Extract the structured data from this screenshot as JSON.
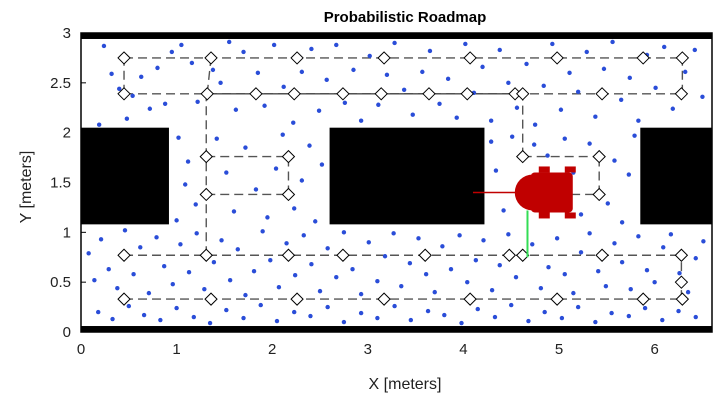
{
  "chart_data": {
    "type": "scatter",
    "title": "Probabilistic Roadmap",
    "xlabel": "X [meters]",
    "ylabel": "Y [meters]",
    "xlim": [
      0,
      6.6
    ],
    "ylim": [
      0,
      3
    ],
    "xticks": [
      "0",
      "1",
      "2",
      "3",
      "4",
      "5",
      "6"
    ],
    "yticks": [
      "0",
      "0.5",
      "1",
      "1.5",
      "2",
      "2.5",
      "3"
    ],
    "colors": {
      "obstacle": "#000000",
      "sample": "#2a4dd8",
      "edge": "#555555",
      "path": "#4a4a4a",
      "node": "#000000",
      "robot": "#c00000",
      "heading": "#c00000",
      "sensor": "#33dd55"
    },
    "obstacles": [
      {
        "x": [
          0,
          0.92
        ],
        "y": [
          1.08,
          2.05
        ]
      },
      {
        "x": [
          2.6,
          4.22
        ],
        "y": [
          1.08,
          2.05
        ]
      },
      {
        "x": [
          5.85,
          6.6
        ],
        "y": [
          1.08,
          2.05
        ]
      }
    ],
    "border": {
      "x": [
        0,
        6.6
      ],
      "y": [
        0.06,
        2.94
      ]
    },
    "nodes": [
      [
        0.45,
        2.75
      ],
      [
        1.36,
        2.75
      ],
      [
        2.26,
        2.75
      ],
      [
        3.17,
        2.75
      ],
      [
        4.07,
        2.75
      ],
      [
        4.98,
        2.75
      ],
      [
        5.88,
        2.75
      ],
      [
        6.29,
        2.75
      ],
      [
        0.45,
        2.39
      ],
      [
        1.32,
        2.39
      ],
      [
        1.83,
        2.39
      ],
      [
        2.23,
        2.39
      ],
      [
        2.74,
        2.39
      ],
      [
        3.14,
        2.39
      ],
      [
        3.64,
        2.39
      ],
      [
        4.04,
        2.39
      ],
      [
        4.54,
        2.39
      ],
      [
        4.62,
        2.39
      ],
      [
        5.45,
        2.39
      ],
      [
        6.28,
        2.39
      ],
      [
        1.31,
        1.76
      ],
      [
        2.17,
        1.76
      ],
      [
        4.62,
        1.76
      ],
      [
        5.42,
        1.76
      ],
      [
        1.31,
        1.38
      ],
      [
        2.17,
        1.38
      ],
      [
        5.42,
        1.38
      ],
      [
        0.45,
        0.77
      ],
      [
        1.31,
        0.77
      ],
      [
        2.17,
        0.77
      ],
      [
        2.74,
        0.77
      ],
      [
        3.6,
        0.77
      ],
      [
        4.48,
        0.77
      ],
      [
        4.62,
        0.77
      ],
      [
        5.45,
        0.77
      ],
      [
        6.28,
        0.77
      ],
      [
        0.45,
        0.33
      ],
      [
        1.36,
        0.33
      ],
      [
        2.26,
        0.33
      ],
      [
        3.17,
        0.33
      ],
      [
        4.07,
        0.33
      ],
      [
        4.98,
        0.33
      ],
      [
        5.88,
        0.33
      ],
      [
        6.29,
        0.33
      ],
      [
        6.28,
        0.5
      ]
    ],
    "edges": [
      [
        [
          0.45,
          2.75
        ],
        [
          6.29,
          2.75
        ]
      ],
      [
        [
          0.45,
          2.39
        ],
        [
          6.28,
          2.39
        ]
      ],
      [
        [
          0.45,
          0.77
        ],
        [
          6.28,
          0.77
        ]
      ],
      [
        [
          0.45,
          0.33
        ],
        [
          6.29,
          0.33
        ]
      ],
      [
        [
          1.31,
          1.76
        ],
        [
          2.17,
          1.76
        ]
      ],
      [
        [
          1.31,
          1.38
        ],
        [
          2.17,
          1.38
        ]
      ],
      [
        [
          4.62,
          1.76
        ],
        [
          5.42,
          1.76
        ]
      ],
      [
        [
          1.31,
          0.77
        ],
        [
          1.31,
          2.39
        ]
      ],
      [
        [
          2.17,
          1.38
        ],
        [
          2.17,
          1.76
        ]
      ],
      [
        [
          4.62,
          1.76
        ],
        [
          4.62,
          2.39
        ]
      ],
      [
        [
          5.42,
          1.38
        ],
        [
          5.42,
          1.76
        ]
      ],
      [
        [
          0.45,
          2.39
        ],
        [
          0.45,
          2.75
        ]
      ],
      [
        [
          6.28,
          0.33
        ],
        [
          6.28,
          0.77
        ]
      ],
      [
        [
          6.29,
          2.39
        ],
        [
          6.29,
          2.75
        ]
      ],
      [
        [
          1.32,
          2.39
        ],
        [
          1.36,
          2.75
        ]
      ],
      [
        [
          4.98,
          1.38
        ],
        [
          5.42,
          1.38
        ]
      ]
    ],
    "path": [
      [
        1.32,
        2.39
      ],
      [
        4.62,
        2.39
      ]
    ],
    "robot": {
      "x": 4.83,
      "y": 1.4,
      "heading_to": [
        4.1,
        1.4
      ],
      "sensor_to": [
        4.67,
        0.75
      ]
    },
    "samples": [
      [
        0.19,
        2.08
      ],
      [
        0.24,
        2.87
      ],
      [
        0.32,
        2.59
      ],
      [
        0.4,
        2.44
      ],
      [
        0.48,
        2.14
      ],
      [
        0.54,
        2.37
      ],
      [
        0.63,
        2.56
      ],
      [
        0.72,
        2.24
      ],
      [
        0.8,
        2.65
      ],
      [
        0.88,
        2.29
      ],
      [
        0.95,
        2.81
      ],
      [
        1.05,
        2.88
      ],
      [
        1.16,
        2.7
      ],
      [
        1.22,
        2.31
      ],
      [
        1.38,
        2.63
      ],
      [
        1.46,
        2.5
      ],
      [
        1.55,
        2.91
      ],
      [
        1.62,
        2.23
      ],
      [
        1.7,
        2.81
      ],
      [
        1.85,
        2.6
      ],
      [
        1.92,
        2.27
      ],
      [
        2.02,
        2.88
      ],
      [
        2.12,
        2.46
      ],
      [
        2.22,
        2.1
      ],
      [
        2.31,
        2.61
      ],
      [
        2.41,
        2.84
      ],
      [
        2.49,
        2.22
      ],
      [
        2.57,
        2.53
      ],
      [
        2.67,
        2.88
      ],
      [
        2.76,
        2.3
      ],
      [
        2.85,
        2.63
      ],
      [
        2.93,
        2.12
      ],
      [
        3.02,
        2.77
      ],
      [
        3.11,
        2.28
      ],
      [
        3.2,
        2.58
      ],
      [
        3.28,
        2.9
      ],
      [
        3.38,
        2.43
      ],
      [
        3.47,
        2.18
      ],
      [
        3.57,
        2.61
      ],
      [
        3.65,
        2.82
      ],
      [
        3.75,
        2.29
      ],
      [
        3.84,
        2.54
      ],
      [
        3.93,
        2.15
      ],
      [
        4.02,
        2.89
      ],
      [
        4.11,
        2.4
      ],
      [
        4.2,
        2.66
      ],
      [
        4.29,
        2.12
      ],
      [
        4.38,
        2.83
      ],
      [
        4.47,
        2.5
      ],
      [
        4.56,
        2.25
      ],
      [
        4.66,
        2.69
      ],
      [
        4.75,
        2.08
      ],
      [
        4.84,
        2.47
      ],
      [
        4.93,
        2.89
      ],
      [
        5.02,
        2.23
      ],
      [
        5.11,
        2.6
      ],
      [
        5.2,
        2.41
      ],
      [
        5.29,
        2.81
      ],
      [
        5.38,
        2.16
      ],
      [
        5.47,
        2.64
      ],
      [
        5.56,
        2.91
      ],
      [
        5.65,
        2.33
      ],
      [
        5.74,
        2.55
      ],
      [
        5.83,
        2.12
      ],
      [
        5.92,
        2.78
      ],
      [
        6.01,
        2.45
      ],
      [
        6.1,
        2.86
      ],
      [
        6.19,
        2.24
      ],
      [
        6.32,
        2.61
      ],
      [
        6.42,
        2.83
      ],
      [
        6.5,
        2.36
      ],
      [
        1.02,
        1.95
      ],
      [
        1.12,
        1.71
      ],
      [
        1.2,
        1.28
      ],
      [
        1.0,
        1.12
      ],
      [
        1.09,
        1.48
      ],
      [
        1.42,
        1.94
      ],
      [
        1.52,
        1.6
      ],
      [
        1.6,
        1.21
      ],
      [
        1.72,
        1.85
      ],
      [
        1.83,
        1.43
      ],
      [
        1.95,
        1.15
      ],
      [
        2.04,
        1.64
      ],
      [
        2.11,
        1.98
      ],
      [
        2.23,
        1.24
      ],
      [
        2.31,
        1.52
      ],
      [
        2.39,
        1.87
      ],
      [
        2.45,
        1.11
      ],
      [
        2.52,
        1.68
      ],
      [
        4.29,
        1.91
      ],
      [
        4.34,
        1.62
      ],
      [
        4.42,
        1.22
      ],
      [
        4.51,
        1.96
      ],
      [
        4.74,
        1.88
      ],
      [
        4.88,
        1.77
      ],
      [
        5.06,
        1.94
      ],
      [
        5.15,
        1.6
      ],
      [
        5.23,
        1.18
      ],
      [
        5.32,
        1.89
      ],
      [
        5.51,
        1.29
      ],
      [
        5.58,
        1.72
      ],
      [
        5.66,
        1.1
      ],
      [
        5.73,
        1.58
      ],
      [
        5.79,
        1.97
      ],
      [
        0.08,
        0.79
      ],
      [
        0.14,
        0.52
      ],
      [
        0.21,
        0.93
      ],
      [
        0.29,
        0.63
      ],
      [
        0.38,
        0.44
      ],
      [
        0.46,
        1.02
      ],
      [
        0.55,
        0.58
      ],
      [
        0.62,
        0.85
      ],
      [
        0.71,
        0.39
      ],
      [
        0.79,
        0.95
      ],
      [
        0.87,
        0.66
      ],
      [
        0.96,
        0.48
      ],
      [
        1.04,
        0.88
      ],
      [
        1.13,
        0.6
      ],
      [
        1.21,
        0.99
      ],
      [
        1.29,
        0.43
      ],
      [
        1.39,
        0.7
      ],
      [
        1.47,
        0.92
      ],
      [
        1.56,
        0.52
      ],
      [
        1.64,
        0.83
      ],
      [
        1.72,
        0.37
      ],
      [
        1.81,
        0.61
      ],
      [
        1.9,
        1.01
      ],
      [
        1.98,
        0.72
      ],
      [
        2.07,
        0.45
      ],
      [
        2.15,
        0.89
      ],
      [
        2.24,
        0.57
      ],
      [
        2.33,
        0.97
      ],
      [
        2.41,
        0.68
      ],
      [
        2.5,
        0.41
      ],
      [
        2.58,
        0.84
      ],
      [
        2.67,
        0.55
      ],
      [
        2.75,
        1.0
      ],
      [
        2.84,
        0.63
      ],
      [
        2.93,
        0.38
      ],
      [
        3.01,
        0.9
      ],
      [
        3.1,
        0.51
      ],
      [
        3.18,
        0.76
      ],
      [
        3.27,
        0.99
      ],
      [
        3.35,
        0.46
      ],
      [
        3.44,
        0.69
      ],
      [
        3.53,
        0.94
      ],
      [
        3.61,
        0.58
      ],
      [
        3.7,
        0.4
      ],
      [
        3.78,
        0.86
      ],
      [
        3.87,
        0.63
      ],
      [
        3.96,
        0.97
      ],
      [
        4.04,
        0.5
      ],
      [
        4.13,
        0.72
      ],
      [
        4.21,
        0.92
      ],
      [
        4.3,
        0.42
      ],
      [
        4.38,
        0.67
      ],
      [
        4.47,
        0.98
      ],
      [
        4.55,
        0.55
      ],
      [
        4.72,
        0.88
      ],
      [
        4.81,
        0.44
      ],
      [
        4.89,
        0.65
      ],
      [
        4.98,
        0.94
      ],
      [
        5.06,
        0.58
      ],
      [
        5.15,
        0.39
      ],
      [
        5.23,
        0.8
      ],
      [
        5.32,
        0.99
      ],
      [
        5.41,
        0.61
      ],
      [
        5.49,
        0.46
      ],
      [
        5.58,
        0.89
      ],
      [
        5.66,
        0.7
      ],
      [
        5.75,
        0.43
      ],
      [
        5.83,
        0.96
      ],
      [
        5.92,
        0.62
      ],
      [
        6.0,
        0.5
      ],
      [
        6.09,
        0.85
      ],
      [
        6.17,
        0.98
      ],
      [
        6.26,
        0.59
      ],
      [
        6.35,
        0.4
      ],
      [
        6.43,
        0.74
      ],
      [
        6.51,
        0.91
      ],
      [
        0.18,
        0.2
      ],
      [
        0.33,
        0.13
      ],
      [
        0.5,
        0.26
      ],
      [
        0.66,
        0.17
      ],
      [
        0.83,
        0.12
      ],
      [
        1.0,
        0.24
      ],
      [
        1.18,
        0.15
      ],
      [
        1.35,
        0.09
      ],
      [
        1.52,
        0.22
      ],
      [
        1.7,
        0.14
      ],
      [
        1.88,
        0.27
      ],
      [
        2.05,
        0.11
      ],
      [
        2.23,
        0.2
      ],
      [
        2.4,
        0.16
      ],
      [
        2.58,
        0.25
      ],
      [
        2.75,
        0.1
      ],
      [
        2.93,
        0.19
      ],
      [
        3.1,
        0.14
      ],
      [
        3.28,
        0.26
      ],
      [
        3.45,
        0.12
      ],
      [
        3.63,
        0.21
      ],
      [
        3.8,
        0.17
      ],
      [
        3.98,
        0.09
      ],
      [
        4.15,
        0.23
      ],
      [
        4.33,
        0.15
      ],
      [
        4.5,
        0.27
      ],
      [
        4.68,
        0.11
      ],
      [
        4.85,
        0.2
      ],
      [
        5.03,
        0.14
      ],
      [
        5.2,
        0.25
      ],
      [
        5.38,
        0.1
      ],
      [
        5.55,
        0.19
      ],
      [
        5.73,
        0.16
      ],
      [
        5.9,
        0.24
      ],
      [
        6.08,
        0.12
      ],
      [
        6.25,
        0.21
      ],
      [
        6.43,
        0.15
      ]
    ]
  }
}
